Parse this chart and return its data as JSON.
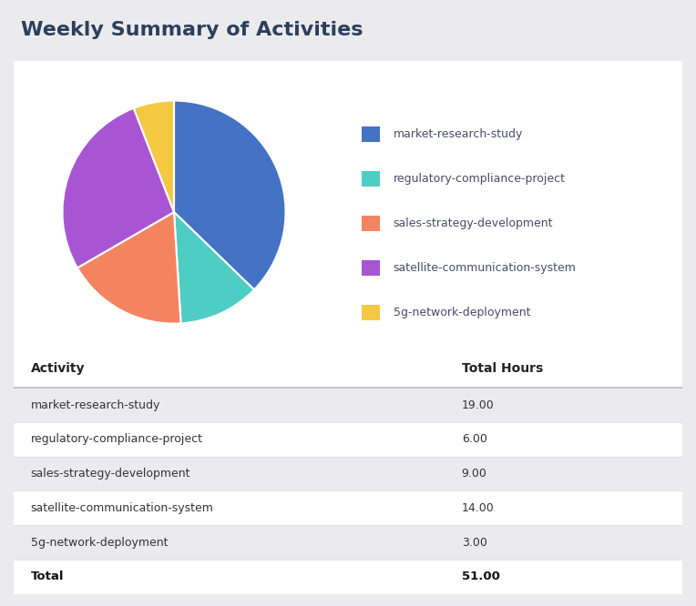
{
  "title": "Weekly Summary of Activities",
  "title_color": "#2d3f5e",
  "background_color": "#ebebed",
  "card_color": "#ffffff",
  "activities": [
    "market-research-study",
    "regulatory-compliance-project",
    "sales-strategy-development",
    "satellite-communication-system",
    "5g-network-deployment"
  ],
  "hours": [
    19.0,
    6.0,
    9.0,
    14.0,
    3.0
  ],
  "total": 51.0,
  "colors": [
    "#4472c4",
    "#4ecdc4",
    "#f4845f",
    "#a855d4",
    "#f5c842"
  ],
  "pie_startangle": 90,
  "table_header_col1": "Activity",
  "table_header_col2": "Total Hours",
  "row_bg_shaded": "#ebebed",
  "row_bg_white": "#ffffff",
  "header_font_size": 10,
  "body_font_size": 9,
  "title_font_size": 16,
  "legend_font_size": 9
}
